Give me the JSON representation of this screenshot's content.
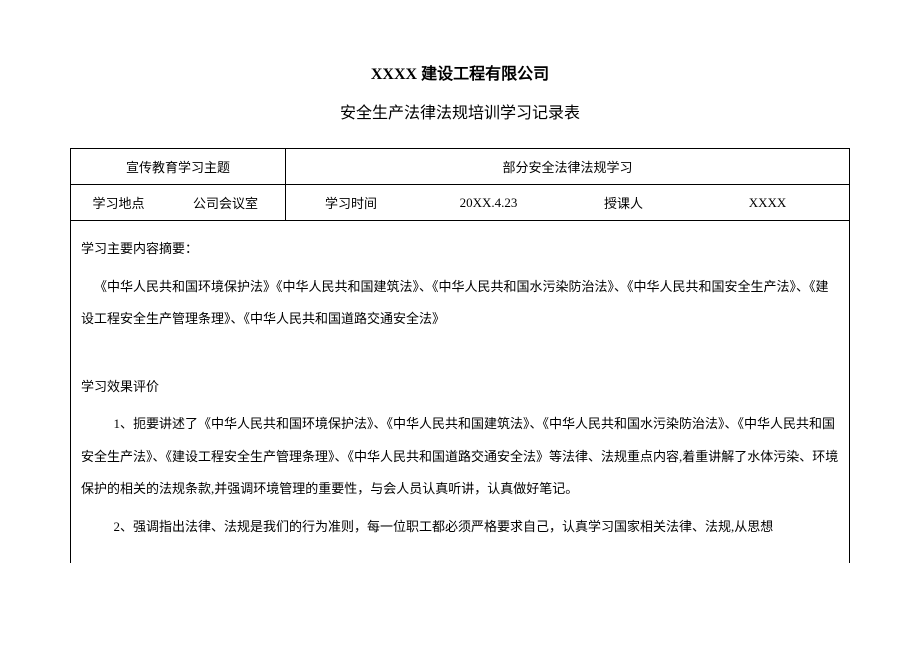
{
  "header": {
    "company": "XXXX 建设工程有限公司",
    "doc_title": "安全生产法律法规培训学习记录表"
  },
  "meta": {
    "theme_label": "宣传教育学习主题",
    "theme_value": "部分安全法律法规学习",
    "location_label": "学习地点",
    "location_value": "公司会议室",
    "time_label": "学习时间",
    "time_value": "20XX.4.23",
    "lecturer_label": "授课人",
    "lecturer_value": "XXXX"
  },
  "content": {
    "summary_heading": "学习主要内容摘要：",
    "summary_body": "《中华人民共和国环境保护法》《中华人民共和国建筑法》、《中华人民共和国水污染防治法》、《中华人民共和国安全生产法》、《建设工程安全生产管理条理》、《中华人民共和国道路交通安全法》",
    "evaluation_heading": "学习效果评价",
    "evaluation_item1": "1、扼要讲述了《中华人民共和国环境保护法》、《中华人民共和国建筑法》、《中华人民共和国水污染防治法》、《中华人民共和国安全生产法》、《建设工程安全生产管理条理》、《中华人民共和国道路交通安全法》等法律、法规重点内容,着重讲解了水体污染、环境保护的相关的法规条款,并强调环境管理的重要性，与会人员认真听讲，认真做好笔记。",
    "evaluation_item2": "2、强调指出法律、法规是我们的行为准则，每一位职工都必须严格要求自己，认真学习国家相关法律、法规,从思想"
  },
  "style": {
    "background_color": "#ffffff",
    "text_color": "#000000",
    "border_color": "#000000",
    "title_fontsize": 16,
    "body_fontsize": 13,
    "font_family": "SimSun"
  }
}
